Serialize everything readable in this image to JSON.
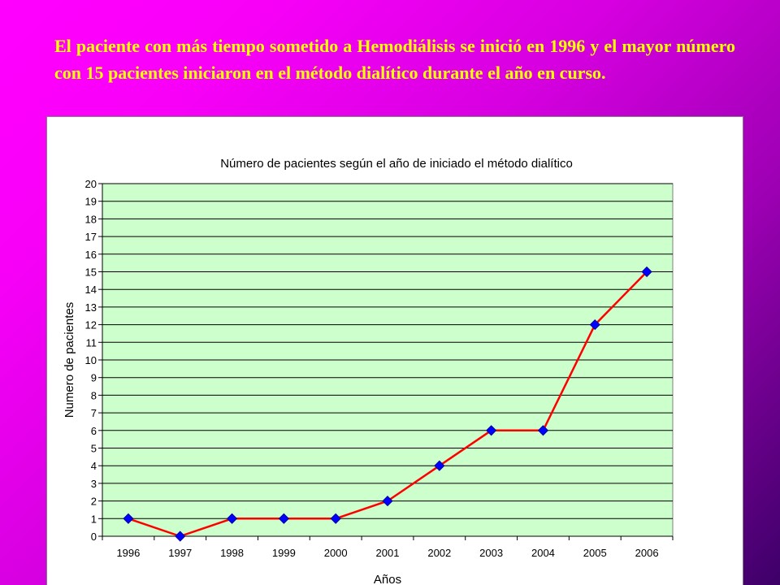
{
  "slide": {
    "text": "El paciente con más tiempo  sometido a Hemodiálisis se inició en 1996 y el mayor número con 15 pacientes iniciaron en el método dialítico durante el año en curso."
  },
  "colors": {
    "background_top": "#ff00ff",
    "background_bottom": "#3d0068",
    "text": "#ffff00",
    "plot_area": "#ccffcc",
    "line": "#ff0000",
    "marker": "#0000ff"
  },
  "chart_data": {
    "type": "line",
    "title": "Número de pacientes según el año de iniciado el método dialítico",
    "xlabel": "Años",
    "ylabel": "Numero de pacientes",
    "categories": [
      "1996",
      "1997",
      "1998",
      "1999",
      "2000",
      "2001",
      "2002",
      "2003",
      "2004",
      "2005",
      "2006"
    ],
    "series": [
      {
        "values": [
          1,
          0,
          1,
          1,
          1,
          2,
          4,
          6,
          6,
          12,
          15
        ]
      }
    ],
    "ylim": [
      0,
      20
    ],
    "ytick_step": 1,
    "grid": "horizontal",
    "legend": "none"
  }
}
